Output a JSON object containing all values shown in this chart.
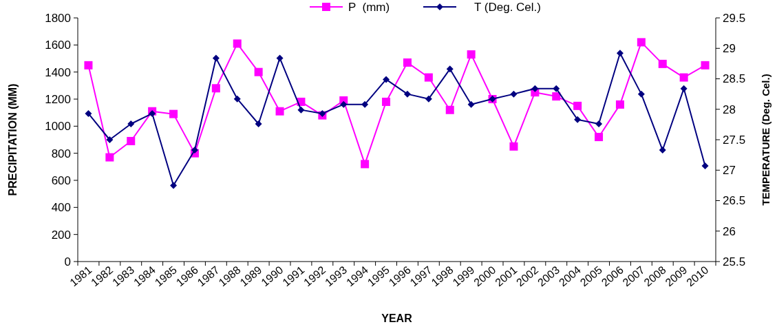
{
  "chart_data": {
    "type": "line",
    "xlabel": "YEAR",
    "ylabel": "PRECIPITATION (MM)",
    "y2label": "TEMPERATURE (Deg. Cel.)",
    "categories": [
      "1981",
      "1982",
      "1983",
      "1984",
      "1985",
      "1986",
      "1987",
      "1988",
      "1989",
      "1990",
      "1991",
      "1992",
      "1993",
      "1994",
      "1995",
      "1996",
      "1997",
      "1998",
      "1999",
      "2000",
      "2001",
      "2002",
      "2003",
      "2004",
      "2005",
      "2006",
      "2007",
      "2008",
      "2009",
      "2010"
    ],
    "series": [
      {
        "name": "P  (mm)",
        "color": "#ff00ff",
        "marker": "square",
        "values": [
          1450,
          770,
          890,
          1110,
          1090,
          800,
          1280,
          1610,
          1400,
          1110,
          1180,
          1080,
          1190,
          720,
          1180,
          1470,
          1360,
          1120,
          1530,
          1200,
          850,
          1250,
          1220,
          1150,
          920,
          1160,
          1620,
          1460,
          1360,
          1450
        ]
      },
      {
        "name": "T (Deg. Cel.)",
        "color": "#000080",
        "marker": "diamond",
        "axis": "y2",
        "values": [
          27.93,
          27.5,
          27.76,
          27.93,
          26.75,
          27.33,
          28.84,
          28.17,
          27.76,
          28.84,
          27.99,
          27.93,
          28.08,
          28.08,
          28.49,
          28.25,
          28.17,
          28.66,
          28.08,
          28.17,
          28.25,
          28.34,
          28.34,
          27.83,
          27.76,
          28.92,
          28.25,
          27.33,
          28.34,
          27.07
        ]
      }
    ],
    "ylim": [
      0,
      1800
    ],
    "yticks": [
      0,
      200,
      400,
      600,
      800,
      1000,
      1200,
      1400,
      1600,
      1800
    ],
    "y2lim": [
      25.5,
      29.5
    ],
    "y2ticks": [
      25.5,
      26,
      26.5,
      27,
      27.5,
      28,
      28.5,
      29,
      29.5
    ],
    "grid": false,
    "legend": "top"
  }
}
